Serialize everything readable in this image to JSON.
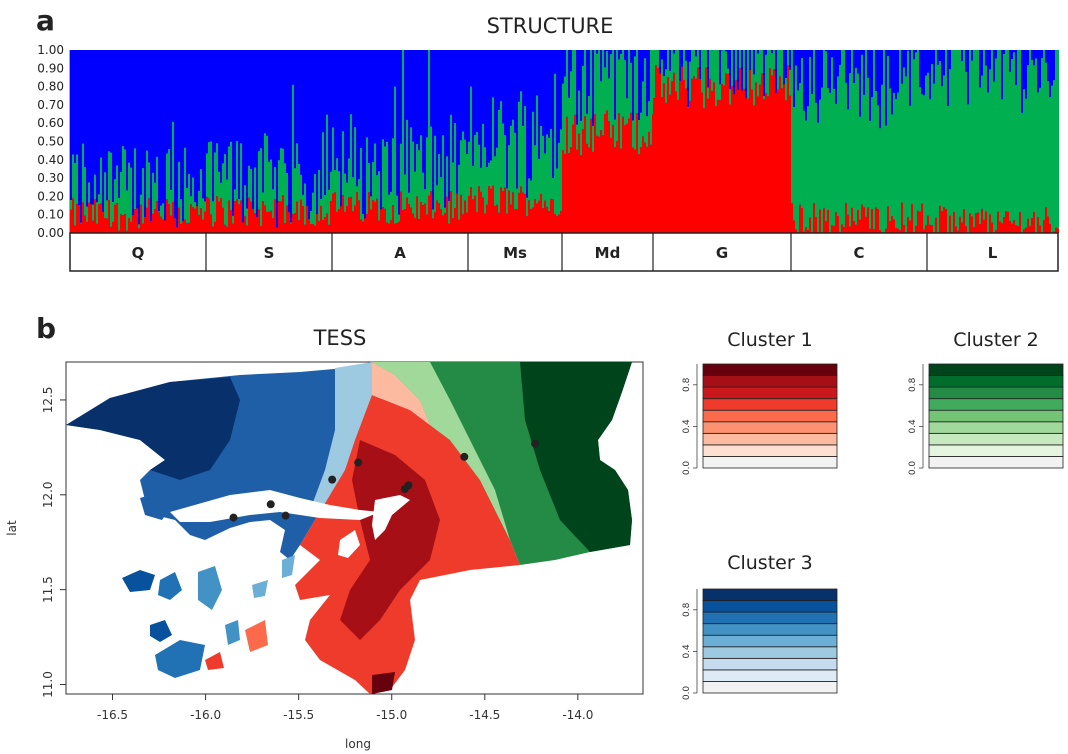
{
  "panel_a": {
    "letter": "a",
    "title": "STRUCTURE"
  },
  "panel_b": {
    "letter": "b",
    "title": "TESS"
  },
  "legends": [
    {
      "title": "Cluster 1",
      "ticks": [
        "0.0",
        "0.4",
        "0.8"
      ],
      "colors": [
        "#f2f2f2",
        "#fde0d2",
        "#fcbba1",
        "#fc9272",
        "#fb6a4a",
        "#ef3b2c",
        "#cb181d",
        "#a50f15",
        "#67000d"
      ]
    },
    {
      "title": "Cluster 2",
      "ticks": [
        "0.0",
        "0.4",
        "0.8"
      ],
      "colors": [
        "#f2f2f2",
        "#e5f5e0",
        "#c7e9c0",
        "#a1d99b",
        "#74c476",
        "#41ab5d",
        "#238b45",
        "#006d2c",
        "#00441b"
      ]
    },
    {
      "title": "Cluster 3",
      "ticks": [
        "0.0",
        "0.4",
        "0.8"
      ],
      "colors": [
        "#f2f2f2",
        "#deebf7",
        "#c6dbef",
        "#9ecae1",
        "#6baed6",
        "#4292c6",
        "#2171b5",
        "#08519c",
        "#08306b"
      ]
    }
  ],
  "chart_data": [
    {
      "type": "bar",
      "title": "STRUCTURE",
      "ylim": [
        0,
        1
      ],
      "yticks": [
        "0.00",
        "0.10",
        "0.20",
        "0.30",
        "0.40",
        "0.50",
        "0.60",
        "0.70",
        "0.80",
        "0.90",
        "1.00"
      ],
      "populations": [
        "Q",
        "S",
        "A",
        "Ms",
        "Md",
        "G",
        "C",
        "L"
      ],
      "colors": {
        "red": "#ff0000",
        "green": "#00b050",
        "blue": "#0000ff"
      },
      "series": [
        {
          "color": "#ff0000",
          "mean_by_population": [
            0.1,
            0.12,
            0.14,
            0.18,
            0.55,
            0.8,
            0.08,
            0.06
          ]
        },
        {
          "color": "#00b050",
          "mean_by_population": [
            0.15,
            0.18,
            0.22,
            0.35,
            0.38,
            0.15,
            0.75,
            0.85
          ]
        },
        {
          "color": "#0000ff",
          "mean_by_population": [
            0.75,
            0.7,
            0.64,
            0.47,
            0.07,
            0.05,
            0.17,
            0.09
          ]
        }
      ]
    },
    {
      "type": "heatmap",
      "title": "TESS",
      "xlabel": "long",
      "ylabel": "lat",
      "xlim": [
        -16.75,
        -13.65
      ],
      "ylim": [
        10.95,
        12.7
      ],
      "xticks": [
        "-16.5",
        "-16.0",
        "-15.5",
        "-15.0",
        "-14.5",
        "-14.0"
      ],
      "yticks": [
        "11.0",
        "11.5",
        "12.0",
        "12.5"
      ],
      "sample_points": [
        {
          "long": -15.85,
          "lat": 11.88
        },
        {
          "long": -15.65,
          "lat": 11.95
        },
        {
          "long": -15.57,
          "lat": 11.89
        },
        {
          "long": -15.32,
          "lat": 12.08
        },
        {
          "long": -15.18,
          "lat": 12.17
        },
        {
          "long": -14.93,
          "lat": 12.03
        },
        {
          "long": -14.91,
          "lat": 12.05
        },
        {
          "long": -14.61,
          "lat": 12.2
        },
        {
          "long": -14.23,
          "lat": 12.27
        }
      ]
    }
  ]
}
